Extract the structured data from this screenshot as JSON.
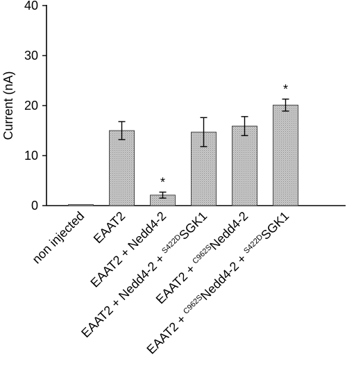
{
  "chart_data": {
    "type": "bar",
    "ylabel": "Current (nA)",
    "ylim": [
      0,
      40
    ],
    "yticks": [
      0,
      10,
      20,
      30,
      40
    ],
    "grid": false,
    "bar_color": "#c8c8c8",
    "categories": [
      {
        "parts": [
          {
            "t": "non injected"
          }
        ]
      },
      {
        "parts": [
          {
            "t": "EAAT2"
          }
        ]
      },
      {
        "parts": [
          {
            "t": "EAAT2 + Nedd4-2"
          }
        ]
      },
      {
        "parts": [
          {
            "t": "EAAT2 + Nedd4-2 + "
          },
          {
            "t": "S422D",
            "sup": true
          },
          {
            "t": "SGK1"
          }
        ]
      },
      {
        "parts": [
          {
            "t": "EAAT2 + "
          },
          {
            "t": "C962S",
            "sup": true
          },
          {
            "t": "Nedd4-2"
          }
        ]
      },
      {
        "parts": [
          {
            "t": "EAAT2 + "
          },
          {
            "t": "C962S",
            "sup": true
          },
          {
            "t": "Nedd4-2 + "
          },
          {
            "t": "S422D",
            "sup": true
          },
          {
            "t": "SGK1"
          }
        ]
      }
    ],
    "values": [
      0.2,
      15.0,
      2.1,
      14.7,
      15.9,
      20.1
    ],
    "errors": [
      0.0,
      1.8,
      0.6,
      2.9,
      1.9,
      1.2
    ],
    "significance": [
      "",
      "",
      "*",
      "",
      "",
      "*"
    ]
  }
}
